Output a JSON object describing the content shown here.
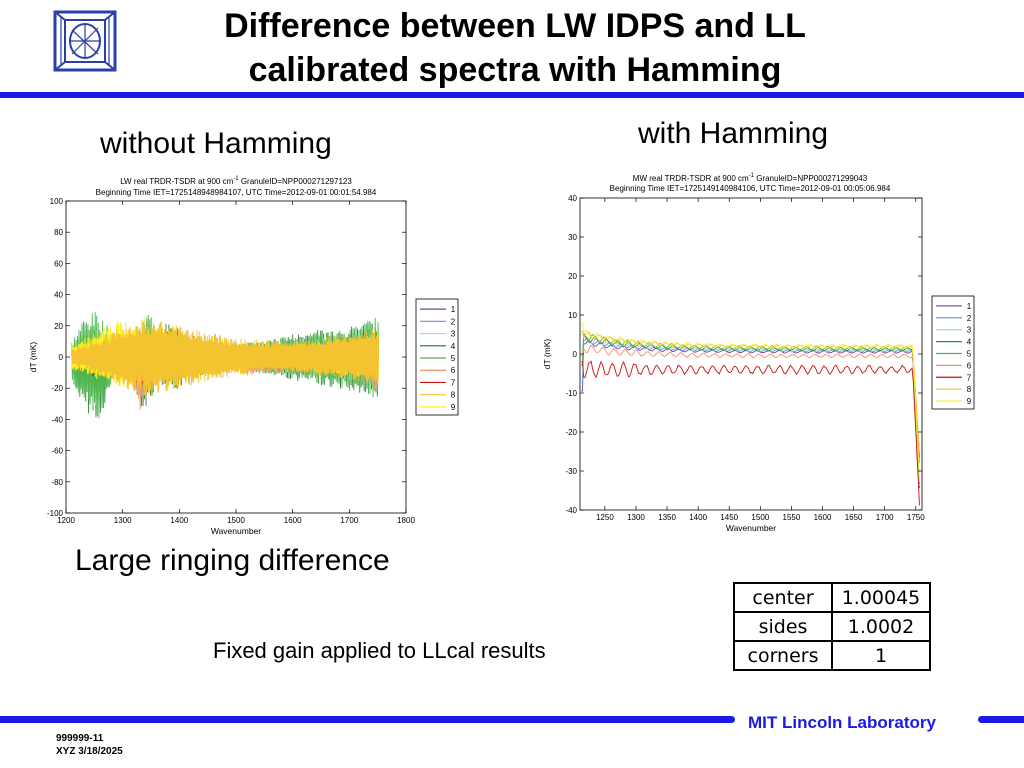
{
  "slide": {
    "title_line1": "Difference between LW IDPS and LL",
    "title_line2": "calibrated spectra with Hamming",
    "label_left": "without Hamming",
    "label_right": "with Hamming",
    "ringing_note": "Large ringing difference",
    "gain_note": "Fixed gain applied to LLcal results",
    "brand": "MIT Lincoln Laboratory",
    "footer_id": "999999-11",
    "footer_date": "XYZ 3/18/2025",
    "accent_color": "#1a1ae8"
  },
  "gain_table": [
    {
      "position": "center",
      "value": "1.00045"
    },
    {
      "position": "sides",
      "value": "1.0002"
    },
    {
      "position": "corners",
      "value": "1"
    }
  ],
  "chart_data": [
    {
      "type": "line",
      "title_line1": "LW real TRDR-TSDR at 900 cm",
      "title_sup": "-1",
      "title_line1b": " GranuleID=NPP000271297123",
      "title_line2": "Beginning Time IET=1725148948984107, UTC Time=2012-09-01 00:01:54.984",
      "xlabel": "Wavenumber",
      "ylabel": "dT (mK)",
      "xlim": [
        1200,
        1800
      ],
      "ylim": [
        -100,
        100
      ],
      "xticks": [
        1200,
        1300,
        1400,
        1500,
        1600,
        1700,
        1800
      ],
      "yticks": [
        -100,
        -80,
        -60,
        -40,
        -20,
        0,
        20,
        40,
        60,
        80,
        100
      ],
      "legend_position": "right-outside",
      "data_x_range": [
        1210,
        1752
      ],
      "series": [
        {
          "name": "1",
          "color": "#7b3fa0",
          "envelope": [
            [
              1210,
              2,
              -2
            ],
            [
              1750,
              2,
              -2
            ]
          ]
        },
        {
          "name": "2",
          "color": "#6f8fd6",
          "envelope": [
            [
              1210,
              3,
              -3
            ],
            [
              1750,
              3,
              -3
            ]
          ]
        },
        {
          "name": "3",
          "color": "#9fd8e8",
          "envelope": [
            [
              1210,
              3,
              -3
            ],
            [
              1750,
              3,
              -3
            ]
          ]
        },
        {
          "name": "4",
          "color": "#2f8a3a",
          "envelope": [
            [
              1210,
              8,
              -10
            ],
            [
              1230,
              20,
              -35
            ],
            [
              1260,
              20,
              -40
            ],
            [
              1290,
              8,
              -8
            ],
            [
              1310,
              5,
              -5
            ],
            [
              1330,
              20,
              -30
            ],
            [
              1340,
              25,
              -35
            ],
            [
              1360,
              15,
              -20
            ],
            [
              1380,
              25,
              -25
            ],
            [
              1420,
              15,
              -15
            ],
            [
              1450,
              10,
              -10
            ],
            [
              1500,
              8,
              -8
            ],
            [
              1550,
              10,
              -10
            ],
            [
              1600,
              15,
              -15
            ],
            [
              1650,
              18,
              -18
            ],
            [
              1700,
              20,
              -22
            ],
            [
              1752,
              25,
              -28
            ]
          ]
        },
        {
          "name": "5",
          "color": "#4fb84f",
          "envelope": [
            [
              1210,
              10,
              -15
            ],
            [
              1230,
              25,
              -30
            ],
            [
              1255,
              30,
              -45
            ],
            [
              1290,
              10,
              -10
            ],
            [
              1320,
              10,
              -8
            ],
            [
              1345,
              30,
              -20
            ],
            [
              1370,
              20,
              -20
            ],
            [
              1420,
              12,
              -12
            ],
            [
              1500,
              8,
              -8
            ],
            [
              1600,
              14,
              -14
            ],
            [
              1700,
              18,
              -22
            ],
            [
              1752,
              27,
              -27
            ]
          ]
        },
        {
          "name": "6",
          "color": "#f0916a",
          "envelope": [
            [
              1210,
              2,
              -5
            ],
            [
              1240,
              3,
              -10
            ],
            [
              1280,
              5,
              -15
            ],
            [
              1300,
              0,
              -5
            ],
            [
              1330,
              -5,
              -35
            ],
            [
              1345,
              0,
              -25
            ],
            [
              1380,
              -5,
              -10
            ],
            [
              1450,
              -5,
              -10
            ],
            [
              1520,
              -5,
              -12
            ],
            [
              1600,
              -3,
              -10
            ],
            [
              1700,
              -3,
              -10
            ],
            [
              1752,
              -5,
              -25
            ]
          ]
        },
        {
          "name": "7",
          "color": "#cc1111",
          "envelope": [
            [
              1240,
              -3,
              -15
            ],
            [
              1270,
              -5,
              -12
            ],
            [
              1300,
              -5,
              -10
            ],
            [
              1330,
              -15,
              -20
            ],
            [
              1345,
              -10,
              -15
            ],
            [
              1400,
              -3,
              -5
            ],
            [
              1500,
              -3,
              -5
            ]
          ]
        },
        {
          "name": "8",
          "color": "#f4c430",
          "envelope": [
            [
              1210,
              5,
              -5
            ],
            [
              1280,
              15,
              -15
            ],
            [
              1300,
              20,
              -20
            ],
            [
              1340,
              25,
              -25
            ],
            [
              1400,
              20,
              -20
            ],
            [
              1500,
              12,
              -12
            ],
            [
              1600,
              10,
              -10
            ],
            [
              1700,
              15,
              -15
            ],
            [
              1752,
              18,
              -18
            ]
          ]
        },
        {
          "name": "9",
          "color": "#ffee22",
          "envelope": [
            [
              1210,
              8,
              -8
            ],
            [
              1260,
              18,
              -15
            ],
            [
              1300,
              25,
              -20
            ],
            [
              1330,
              15,
              -10
            ],
            [
              1360,
              20,
              -15
            ],
            [
              1400,
              10,
              -10
            ],
            [
              1500,
              8,
              -6
            ],
            [
              1600,
              8,
              -8
            ],
            [
              1700,
              12,
              -12
            ],
            [
              1752,
              15,
              -15
            ]
          ]
        }
      ]
    },
    {
      "type": "line",
      "title_line1": "MW real TRDR-TSDR at 900 cm",
      "title_sup": "-1",
      "title_line1b": " GranuleID=NPP000271299043",
      "title_line2": "Beginning Time IET=1725149140984106, UTC Time=2012-09-01 00:05:06.984",
      "xlabel": "Wavenumber",
      "ylabel": "dT (mK)",
      "xlim": [
        1210,
        1760
      ],
      "ylim": [
        -40,
        40
      ],
      "xticks": [
        1250,
        1300,
        1350,
        1400,
        1450,
        1500,
        1550,
        1600,
        1650,
        1700,
        1750
      ],
      "yticks": [
        -40,
        -30,
        -20,
        -10,
        0,
        10,
        20,
        30,
        40
      ],
      "legend_position": "right-outside",
      "series": [
        {
          "name": "1",
          "color": "#7b3fa0",
          "baseline": 0.5,
          "ripple": 0.6
        },
        {
          "name": "2",
          "color": "#6f8fd6",
          "baseline": 0.8,
          "ripple": 0.6
        },
        {
          "name": "3",
          "color": "#9fd8e8",
          "baseline": 1.0,
          "ripple": 0.6
        },
        {
          "name": "4",
          "color": "#2f8a3a",
          "baseline": 1.2,
          "ripple": 0.8
        },
        {
          "name": "5",
          "color": "#4fb84f",
          "baseline": 1.5,
          "ripple": 0.9
        },
        {
          "name": "6",
          "color": "#f0916a",
          "baseline": -0.5,
          "ripple": 0.9
        },
        {
          "name": "7",
          "color": "#cc1111",
          "baseline": -4,
          "ripple": 2.0
        },
        {
          "name": "8",
          "color": "#f4c430",
          "baseline": 1.8,
          "ripple": 0.8
        },
        {
          "name": "9",
          "color": "#ffee22",
          "baseline": 2.0,
          "ripple": 0.8
        }
      ]
    }
  ]
}
